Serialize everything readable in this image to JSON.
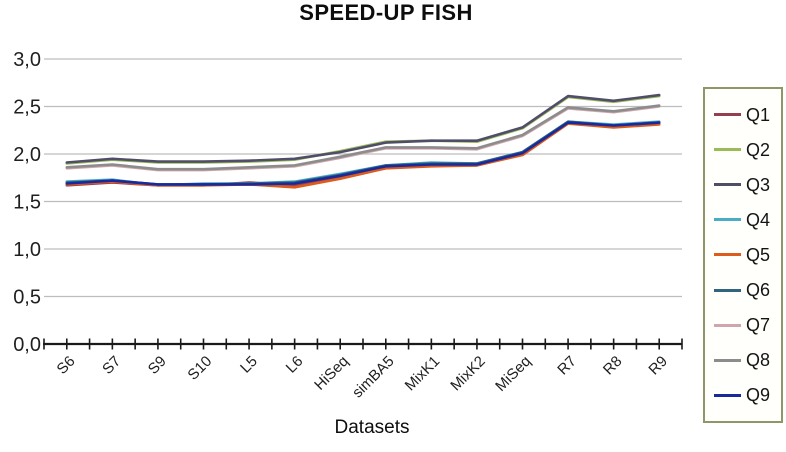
{
  "chart_data": {
    "type": "line",
    "title": "SPEED-UP FISH",
    "xlabel": "Datasets",
    "ylabel": "",
    "categories": [
      "S6",
      "S7",
      "S9",
      "S10",
      "L5",
      "L6",
      "HiSeq",
      "simBA5",
      "MixK1",
      "MixK2",
      "MiSeq",
      "R7",
      "R8",
      "R9"
    ],
    "ylim": [
      0,
      3
    ],
    "ytick_step": 0.5,
    "ytick_labels": [
      "0,0",
      "0,5",
      "1,0",
      "1,5",
      "2,0",
      "2,5",
      "3,0"
    ],
    "grid": true,
    "legend_position": "right",
    "series": [
      {
        "name": "Q1",
        "color": "#943e4e",
        "values": [
          1.67,
          1.7,
          1.67,
          1.67,
          1.7,
          1.67,
          1.76,
          1.86,
          1.88,
          1.88,
          2.0,
          2.33,
          2.29,
          2.32
        ]
      },
      {
        "name": "Q2",
        "color": "#9bbb59",
        "values": [
          1.9,
          1.94,
          1.91,
          1.91,
          1.92,
          1.94,
          2.03,
          2.13,
          2.14,
          2.13,
          2.27,
          2.6,
          2.55,
          2.61
        ]
      },
      {
        "name": "Q3",
        "color": "#4f4d68",
        "values": [
          1.91,
          1.95,
          1.92,
          1.92,
          1.93,
          1.95,
          2.02,
          2.12,
          2.14,
          2.14,
          2.28,
          2.61,
          2.56,
          2.62
        ]
      },
      {
        "name": "Q4",
        "color": "#4bacc6",
        "values": [
          1.71,
          1.73,
          1.67,
          1.69,
          1.69,
          1.71,
          1.79,
          1.88,
          1.91,
          1.9,
          2.02,
          2.34,
          2.31,
          2.34
        ]
      },
      {
        "name": "Q5",
        "color": "#dd5b1c",
        "values": [
          1.68,
          1.71,
          1.67,
          1.67,
          1.68,
          1.65,
          1.74,
          1.85,
          1.87,
          1.88,
          1.99,
          2.32,
          2.28,
          2.31
        ]
      },
      {
        "name": "Q6",
        "color": "#31657f",
        "values": [
          1.7,
          1.72,
          1.68,
          1.68,
          1.69,
          1.7,
          1.78,
          1.88,
          1.9,
          1.9,
          2.02,
          2.34,
          2.3,
          2.33
        ]
      },
      {
        "name": "Q7",
        "color": "#d0a5ad",
        "values": [
          1.85,
          1.88,
          1.83,
          1.83,
          1.85,
          1.87,
          1.96,
          2.06,
          2.06,
          2.05,
          2.19,
          2.48,
          2.44,
          2.5
        ]
      },
      {
        "name": "Q8",
        "color": "#8c8c8c",
        "values": [
          1.86,
          1.89,
          1.84,
          1.84,
          1.86,
          1.88,
          1.97,
          2.07,
          2.07,
          2.06,
          2.2,
          2.49,
          2.45,
          2.51
        ]
      },
      {
        "name": "Q9",
        "color": "#1a2a9c",
        "values": [
          1.69,
          1.72,
          1.68,
          1.68,
          1.68,
          1.69,
          1.77,
          1.87,
          1.89,
          1.89,
          2.01,
          2.33,
          2.3,
          2.33
        ]
      }
    ],
    "colors": {
      "grid": "#bdbdbd",
      "axis": "#1a1a1a",
      "text": "#1f1f1f",
      "legend_border": "#8f9768"
    }
  }
}
